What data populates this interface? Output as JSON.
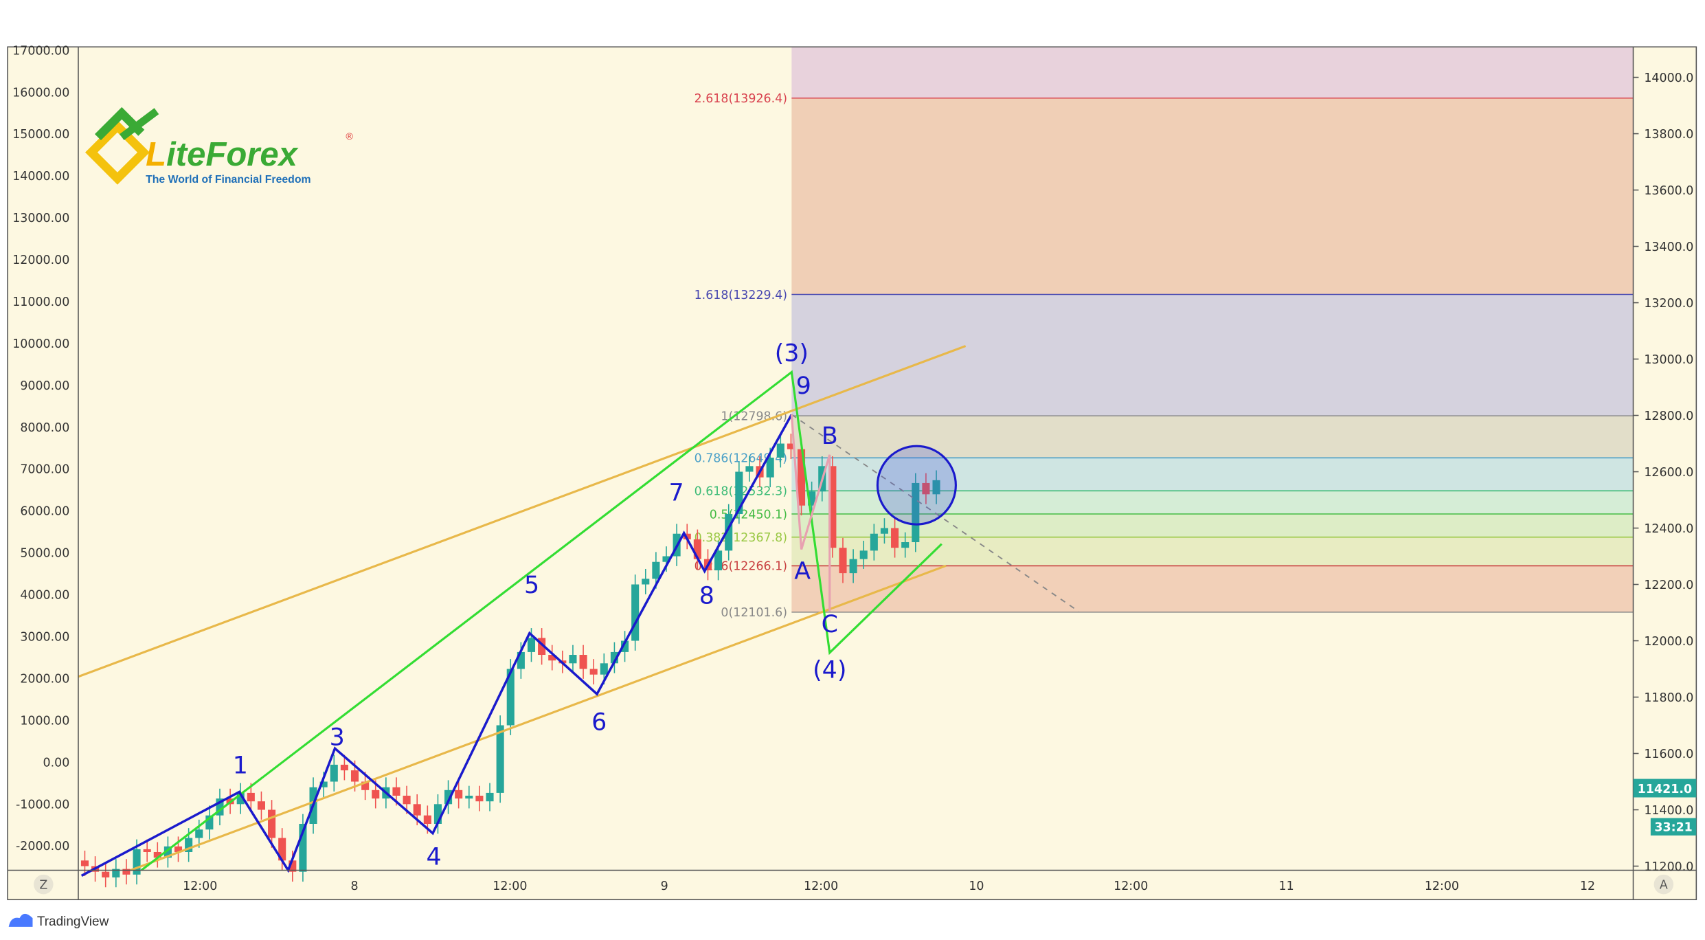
{
  "logo": {
    "brand": "LiteForex",
    "registered": "®",
    "tagline": "The World of Financial Freedom"
  },
  "footer": {
    "brand": "TradingView"
  },
  "buttons": {
    "timezone": "Z",
    "auto_scale": "A"
  },
  "colors": {
    "bull": "#26a69a",
    "bear": "#ef5350",
    "wave": "#1a1acc",
    "channel": "#e8b84a",
    "green_wave": "#33dd33",
    "abc": "#e07090",
    "background": "#fdf8e1"
  },
  "chart_data": {
    "type": "candlestick",
    "title": "",
    "left_axis": {
      "ticks": [
        "17000.00",
        "16000.00",
        "15000.00",
        "14000.00",
        "13000.00",
        "12000.00",
        "11000.00",
        "10000.00",
        "9000.00",
        "8000.00",
        "7000.00",
        "6000.00",
        "5000.00",
        "4000.00",
        "3000.00",
        "2000.00",
        "1000.00",
        "0.00",
        "-1000.00",
        "-2000.00"
      ]
    },
    "right_axis": {
      "ylim": [
        11200,
        14000
      ],
      "ticks": [
        "14000.0",
        "13800.0",
        "13600.0",
        "13400.0",
        "13200.0",
        "13000.0",
        "12800.0",
        "12600.0",
        "12400.0",
        "12200.0",
        "12000.0",
        "11800.0",
        "11600.0",
        "11400.0",
        "11200.0"
      ]
    },
    "x_axis": {
      "ticks": [
        "12:00",
        "8",
        "12:00",
        "9",
        "12:00",
        "10",
        "12:00",
        "11",
        "12:00",
        "12"
      ]
    },
    "current_price": "11421.0",
    "countdown": "33:21",
    "closes": [
      11200,
      11180,
      11160,
      11190,
      11170,
      11260,
      11250,
      11230,
      11270,
      11250,
      11300,
      11330,
      11380,
      11440,
      11420,
      11460,
      11430,
      11400,
      11300,
      11220,
      11180,
      11350,
      11480,
      11500,
      11560,
      11540,
      11500,
      11470,
      11440,
      11480,
      11450,
      11420,
      11380,
      11350,
      11420,
      11470,
      11440,
      11450,
      11430,
      11460,
      11700,
      11900,
      11960,
      12010,
      11950,
      11930,
      11920,
      11950,
      11900,
      11880,
      11920,
      11960,
      12000,
      12200,
      12220,
      12280,
      12300,
      12380,
      12360,
      12290,
      12250,
      12320,
      12450,
      12600,
      12620,
      12580,
      12650,
      12700,
      12680,
      12480,
      12530,
      12620,
      12330,
      12240,
      12290,
      12320,
      12380,
      12400,
      12330,
      12350,
      12560,
      12520,
      12570
    ],
    "fibonacci": [
      {
        "ratio": "2.618",
        "price": 13926.4,
        "label": "2.618(13926.4)",
        "color": "#d9434f"
      },
      {
        "ratio": "1.618",
        "price": 13229.4,
        "label": "1.618(13229.4)",
        "color": "#4848b0"
      },
      {
        "ratio": "1",
        "price": 12798.6,
        "label": "1(12798.6)",
        "color": "#8a8a8a"
      },
      {
        "ratio": "0.786",
        "price": 12649.4,
        "label": "0.786(12649.4)",
        "color": "#4aa0c8"
      },
      {
        "ratio": "0.618",
        "price": 12532.3,
        "label": "0.618(12532.3)",
        "color": "#3dbb77"
      },
      {
        "ratio": "0.5",
        "price": 12450.1,
        "label": "0.5(12450.1)",
        "color": "#44bb44"
      },
      {
        "ratio": "0.382",
        "price": 12367.8,
        "label": "0.382(12367.8)",
        "color": "#99c844"
      },
      {
        "ratio": "0.236",
        "price": 12266.1,
        "label": "0.236(12266.1)",
        "color": "#c84040"
      },
      {
        "ratio": "0",
        "price": 12101.6,
        "label": "0(12101.6)",
        "color": "#888888"
      }
    ],
    "wave_labels": [
      "1",
      "3",
      "4",
      "5",
      "6",
      "7",
      "8",
      "9",
      "(3)",
      "(4)",
      "A",
      "B",
      "C"
    ]
  }
}
